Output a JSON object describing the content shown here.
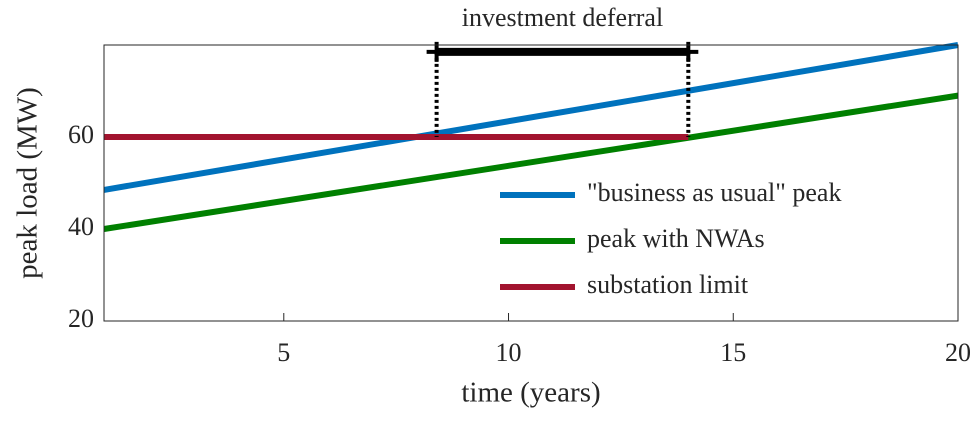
{
  "chart_data": {
    "type": "line",
    "xlabel": "time (years)",
    "ylabel": "peak load (MW)",
    "xlim": [
      1,
      20
    ],
    "ylim": [
      20,
      80
    ],
    "xticks": [
      5,
      10,
      15,
      20
    ],
    "yticks": [
      20,
      40,
      60
    ],
    "legend": "lower right",
    "series": [
      {
        "name": "\"business as usual\" peak",
        "color": "#0072bd",
        "x": [
          1,
          20
        ],
        "values": [
          48.5,
          80
        ]
      },
      {
        "name": "peak with NWAs",
        "color": "#008000",
        "x": [
          1,
          20
        ],
        "values": [
          40,
          69
        ]
      },
      {
        "name": "substation limit",
        "color": "#a2142f",
        "x": [
          1,
          14
        ],
        "values": [
          60,
          60
        ]
      }
    ],
    "annotation": {
      "label": "investment deferral",
      "x": [
        8.4,
        14
      ],
      "y": 78.5,
      "y_end": [
        60,
        60
      ]
    }
  }
}
